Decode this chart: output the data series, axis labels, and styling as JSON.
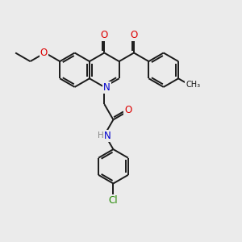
{
  "bg": "#ebebeb",
  "bond_color": "#1a1a1a",
  "lw": 1.4,
  "atom_colors": {
    "O": "#dd0000",
    "N": "#0000cc",
    "Cl": "#228800",
    "C": "#1a1a1a"
  },
  "fs": 7.5
}
